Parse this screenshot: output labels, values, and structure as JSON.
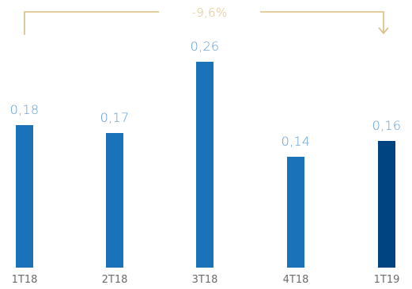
{
  "chart_data": {
    "type": "bar",
    "categories": [
      "1T18",
      "2T18",
      "3T18",
      "4T18",
      "1T19"
    ],
    "values": [
      0.18,
      0.17,
      0.26,
      0.14,
      0.16
    ],
    "value_labels": [
      "0,18",
      "0,17",
      "0,26",
      "0,14",
      "0,16"
    ],
    "title": "",
    "xlabel": "",
    "ylabel": "",
    "ylim": [
      0,
      0.3
    ],
    "grid": false,
    "annotation": {
      "text": "-9,6%",
      "from_category": "1T18",
      "to_category": "1T19"
    }
  },
  "colors": {
    "bar": "#1a73b8",
    "bar_highlight": "#004481",
    "value_label": "#5b9bd5",
    "annotation": "#d8bd7f",
    "category_label": "#6b6b6b"
  }
}
